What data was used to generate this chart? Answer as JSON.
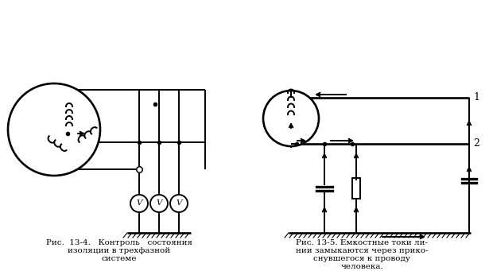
{
  "bg_color": "#ffffff",
  "line_color": "#000000",
  "fig_width": 6.15,
  "fig_height": 3.41,
  "dpi": 100,
  "caption1_line1": "Рис.  13-4.   Контроль   состояния",
  "caption1_line2": "изоляции в трехфазной",
  "caption1_line3": "системе",
  "caption2_line1": "Рис. 13-5. Емкостные токи ли-",
  "caption2_line2": "нии замыкаются через прико-",
  "caption2_line3": "снувшегося к проводу",
  "caption2_line4": "человека.",
  "font_size": 7.5
}
